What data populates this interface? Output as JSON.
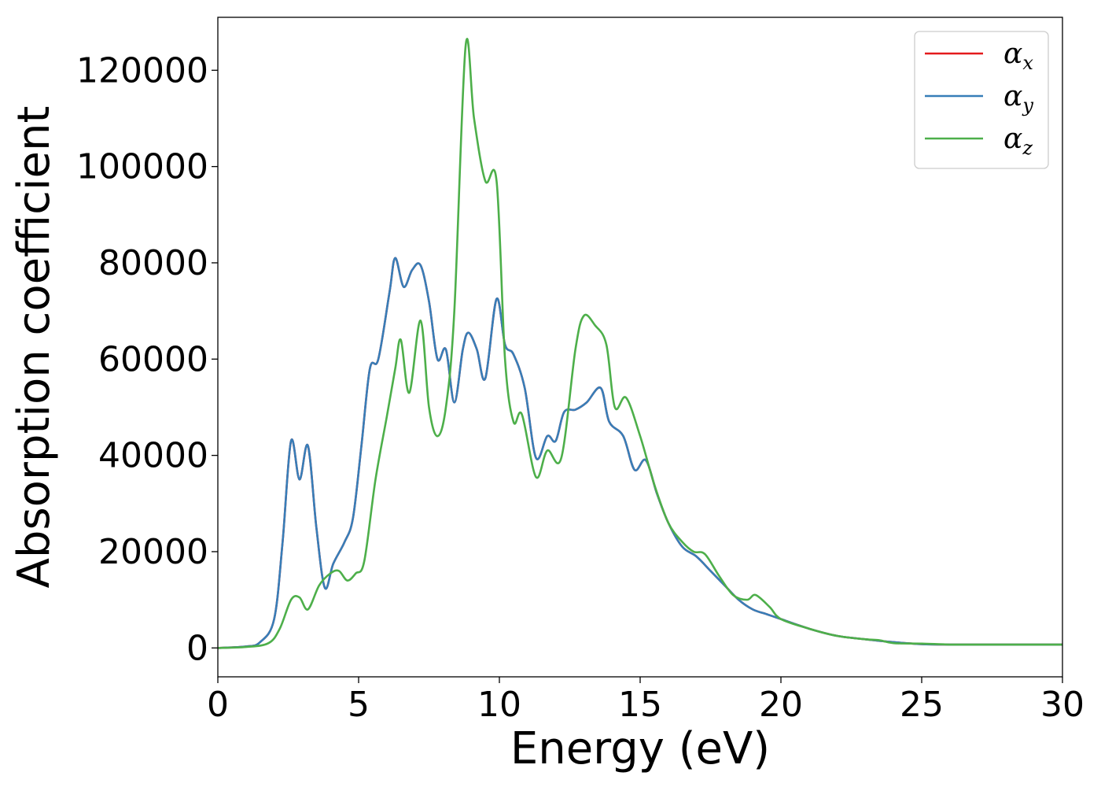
{
  "chart_data": {
    "type": "line",
    "title": "",
    "xlabel": "Energy (eV)",
    "ylabel": "Absorption coefficient",
    "xlim": [
      0,
      30
    ],
    "ylim": [
      -6000,
      131000
    ],
    "xticks": [
      0,
      5,
      10,
      15,
      20,
      25,
      30
    ],
    "yticks": [
      0,
      20000,
      40000,
      60000,
      80000,
      100000,
      120000
    ],
    "grid": false,
    "legend_position": "top-right",
    "series": [
      {
        "name": "αx",
        "symbol": "α",
        "subscript": "x",
        "color": "#e41a1c",
        "x": [
          0,
          1,
          1.5,
          2,
          2.3,
          2.6,
          2.9,
          3.2,
          3.5,
          3.8,
          4.1,
          4.5,
          4.8,
          5.1,
          5.4,
          5.7,
          6.1,
          6.3,
          6.6,
          6.9,
          7.2,
          7.5,
          7.8,
          8.1,
          8.4,
          8.7,
          8.9,
          9.2,
          9.5,
          9.9,
          10.2,
          10.5,
          10.9,
          11.3,
          11.7,
          12,
          12.3,
          12.7,
          13.1,
          13.6,
          13.9,
          14.4,
          14.8,
          15.2,
          15.6,
          16,
          16.5,
          17,
          17.5,
          18,
          18.5,
          19,
          19.5,
          20,
          21,
          22,
          23,
          24,
          25,
          26,
          27,
          28,
          29,
          30
        ],
        "values": [
          0,
          300,
          1200,
          6000,
          22000,
          43000,
          35000,
          42000,
          25000,
          12500,
          17500,
          22000,
          27000,
          42000,
          58000,
          60000,
          74000,
          81000,
          75000,
          78500,
          79500,
          72000,
          60000,
          62000,
          51000,
          62000,
          65500,
          62000,
          56000,
          72500,
          63000,
          61000,
          54000,
          39500,
          44000,
          43000,
          49000,
          49500,
          51000,
          54000,
          47000,
          44000,
          37000,
          39000,
          32000,
          26000,
          21000,
          19000,
          16000,
          13000,
          10000,
          8000,
          7000,
          6000,
          4000,
          2500,
          1800,
          1200,
          800,
          700,
          700,
          700,
          700,
          700
        ]
      },
      {
        "name": "αy",
        "symbol": "α",
        "subscript": "y",
        "color": "#377eb8",
        "x": [
          0,
          1,
          1.5,
          2,
          2.3,
          2.6,
          2.9,
          3.2,
          3.5,
          3.8,
          4.1,
          4.5,
          4.8,
          5.1,
          5.4,
          5.7,
          6.1,
          6.3,
          6.6,
          6.9,
          7.2,
          7.5,
          7.8,
          8.1,
          8.4,
          8.7,
          8.9,
          9.2,
          9.5,
          9.9,
          10.2,
          10.5,
          10.9,
          11.3,
          11.7,
          12,
          12.3,
          12.7,
          13.1,
          13.6,
          13.9,
          14.4,
          14.8,
          15.2,
          15.6,
          16,
          16.5,
          17,
          17.5,
          18,
          18.5,
          19,
          19.5,
          20,
          21,
          22,
          23,
          24,
          25,
          26,
          27,
          28,
          29,
          30
        ],
        "values": [
          0,
          300,
          1200,
          6000,
          22000,
          43000,
          35000,
          42000,
          25000,
          12500,
          17500,
          22000,
          27000,
          42000,
          58000,
          60000,
          74000,
          81000,
          75000,
          78500,
          79500,
          72000,
          60000,
          62000,
          51000,
          62000,
          65500,
          62000,
          56000,
          72500,
          63000,
          61000,
          54000,
          39500,
          44000,
          43000,
          49000,
          49500,
          51000,
          54000,
          47000,
          44000,
          37000,
          39000,
          32000,
          26000,
          21000,
          19000,
          16000,
          13000,
          10000,
          8000,
          7000,
          6000,
          4000,
          2500,
          1800,
          1200,
          800,
          700,
          700,
          700,
          700,
          700
        ]
      },
      {
        "name": "αz",
        "symbol": "α",
        "subscript": "z",
        "color": "#4daf4a",
        "x": [
          0,
          1,
          1.8,
          2.2,
          2.6,
          2.9,
          3.2,
          3.6,
          4,
          4.3,
          4.6,
          4.9,
          5.2,
          5.6,
          6,
          6.3,
          6.5,
          6.8,
          7.2,
          7.5,
          7.8,
          8.1,
          8.4,
          8.8,
          9.1,
          9.5,
          9.9,
          10.2,
          10.5,
          10.8,
          11.3,
          11.7,
          12.2,
          12.7,
          13,
          13.4,
          13.8,
          14.1,
          14.5,
          15,
          15.5,
          16,
          16.5,
          16.9,
          17.3,
          17.8,
          18.3,
          18.8,
          19.1,
          19.6,
          20,
          21,
          22,
          23,
          23.5,
          24,
          25,
          26,
          27,
          28,
          29,
          30
        ],
        "values": [
          0,
          200,
          1000,
          4000,
          10000,
          10500,
          8000,
          13000,
          15500,
          16000,
          14000,
          15500,
          18000,
          35000,
          48000,
          58000,
          64000,
          53000,
          68000,
          50000,
          44000,
          50000,
          70000,
          125000,
          110000,
          97000,
          97000,
          60000,
          47000,
          48500,
          35500,
          41000,
          39500,
          62000,
          69000,
          67000,
          63000,
          50000,
          52000,
          44000,
          34000,
          26000,
          22000,
          20000,
          19500,
          15000,
          11000,
          10000,
          11000,
          8500,
          6000,
          4000,
          2500,
          1800,
          1600,
          1000,
          900,
          700,
          700,
          700,
          700,
          700
        ]
      }
    ]
  }
}
